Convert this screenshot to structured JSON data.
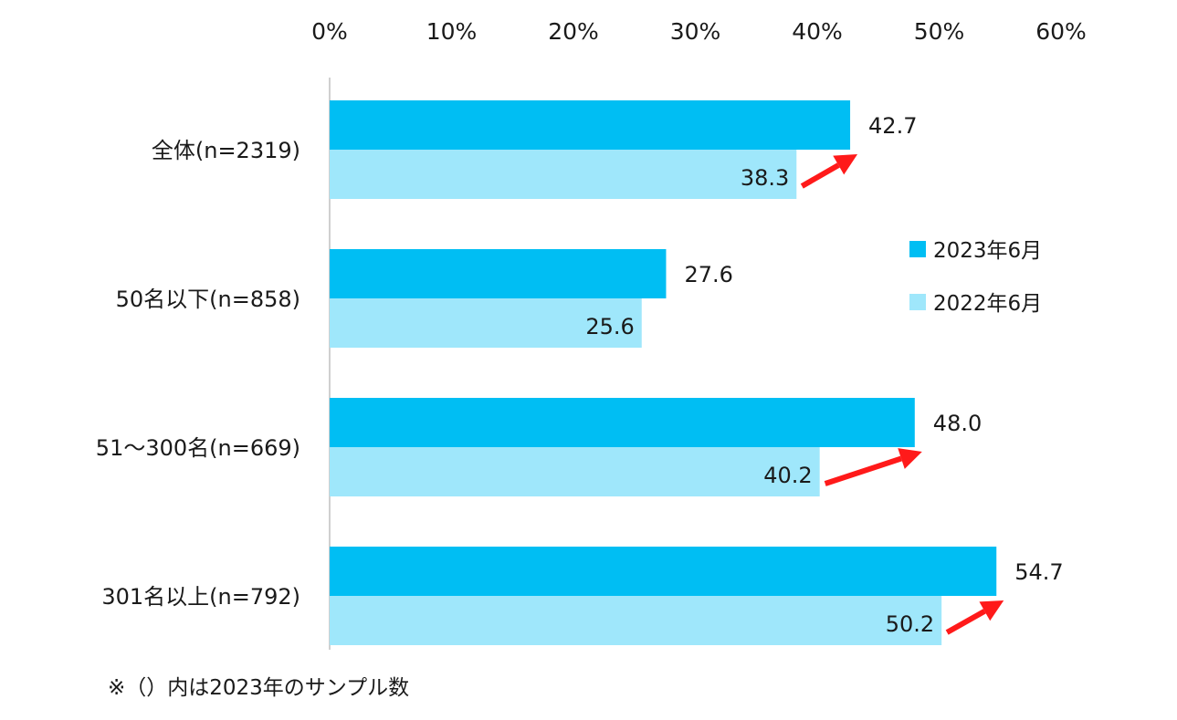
{
  "chart_data": {
    "type": "bar",
    "orientation": "horizontal",
    "categories": [
      "全体(n=2319)",
      "50名以下(n=858)",
      "51～300名(n=669)",
      "301名以上(n=792)"
    ],
    "series": [
      {
        "name": "2023年6月",
        "color": "#00BEF3",
        "values": [
          42.7,
          27.6,
          48.0,
          54.7
        ],
        "labels": [
          "42.7",
          "27.6",
          "48.0",
          "54.7"
        ]
      },
      {
        "name": "2022年6月",
        "color": "#9FE7FB",
        "values": [
          38.3,
          25.6,
          40.2,
          50.2
        ],
        "labels": [
          "38.3",
          "25.6",
          "40.2",
          "50.2"
        ]
      }
    ],
    "xlim": [
      0,
      60
    ],
    "xticks": [
      "0%",
      "10%",
      "20%",
      "30%",
      "40%",
      "50%",
      "60%"
    ],
    "xaxis_position": "top",
    "grid": false,
    "legend_position": "right",
    "annotations": {
      "increase_arrows_on_categories": [
        0,
        2,
        3
      ],
      "arrow_color": "#FF1A1A"
    },
    "note": "※（）内は2023年のサンプル数"
  }
}
